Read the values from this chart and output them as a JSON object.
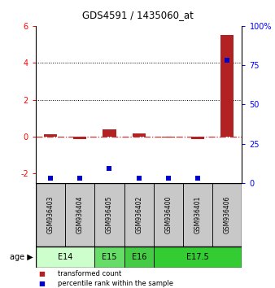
{
  "title": "GDS4591 / 1435060_at",
  "samples": [
    "GSM936403",
    "GSM936404",
    "GSM936405",
    "GSM936402",
    "GSM936400",
    "GSM936401",
    "GSM936406"
  ],
  "transformed_count": [
    0.15,
    -0.12,
    0.38,
    0.2,
    -0.05,
    -0.12,
    5.5
  ],
  "percentile_rank": [
    3,
    3,
    9,
    3,
    3,
    3,
    78
  ],
  "age_groups": [
    {
      "label": "E14",
      "samples": [
        0,
        1
      ],
      "color": "#ccffcc"
    },
    {
      "label": "E15",
      "samples": [
        2
      ],
      "color": "#66dd66"
    },
    {
      "label": "E16",
      "samples": [
        3
      ],
      "color": "#44cc44"
    },
    {
      "label": "E17.5",
      "samples": [
        4,
        5,
        6
      ],
      "color": "#33cc33"
    }
  ],
  "ylim_left": [
    -2.5,
    6.0
  ],
  "ylim_right": [
    0,
    100
  ],
  "yticks_left": [
    -2,
    0,
    2,
    4,
    6
  ],
  "yticks_right": [
    0,
    25,
    50,
    75,
    100
  ],
  "ytick_right_labels": [
    "0",
    "25",
    "50",
    "75",
    "100%"
  ],
  "bar_color_red": "#b22222",
  "bar_color_blue": "#0000cc",
  "hline_color": "#cc3333",
  "bg_color_sample": "#c8c8c8",
  "legend_red_label": "transformed count",
  "legend_blue_label": "percentile rank within the sample",
  "age_label": "age"
}
